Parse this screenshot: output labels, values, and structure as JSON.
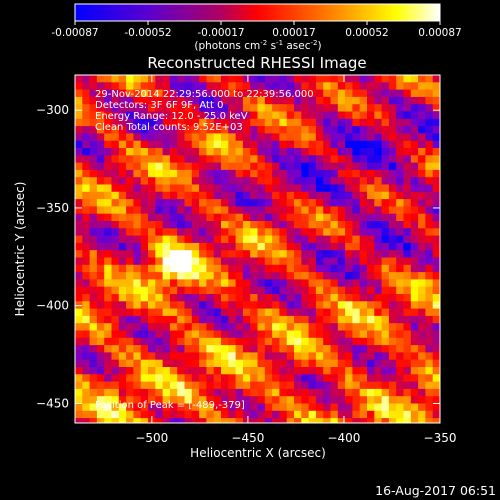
{
  "colorbar": {
    "ticks": [
      "-0.00087",
      "-0.00052",
      "-0.00017",
      "0.00017",
      "0.00052",
      "0.00087"
    ],
    "unit_main": "(photons cm",
    "unit_exp1": "-2",
    "unit_mid": " s",
    "unit_exp2": "-1",
    "unit_tail": " asec",
    "unit_exp3": "-2",
    "unit_close": ")"
  },
  "footer": {
    "timestamp": "16-Aug-2017 06:51"
  },
  "chart_data": {
    "type": "heatmap",
    "title": "Reconstructed RHESSI Image",
    "xlabel": "Heliocentric X (arcsec)",
    "ylabel": "Heliocentric Y (arcsec)",
    "xlim": [
      -540,
      -350
    ],
    "ylim": [
      -460,
      -282
    ],
    "x_ticks": [
      -500,
      -450,
      -400,
      -350
    ],
    "x_tick_labels": [
      "−500",
      "−450",
      "−400",
      "−350"
    ],
    "y_ticks": [
      -300,
      -350,
      -400,
      -450
    ],
    "y_tick_labels": [
      "−300",
      "−350",
      "−400",
      "−450"
    ],
    "colorbar_range": [
      -0.00087,
      0.00087
    ],
    "colormap_stops": [
      "#0000ff",
      "#7a00c8",
      "#ff0000",
      "#ff8000",
      "#ffff00",
      "#ffffff"
    ],
    "grid": false,
    "annotations": [
      "29-Nov-2014 22:29:56.000 to 22:39:56.000",
      "Detectors: 3F 6F 9F, Att 0",
      "Energy Range: 12.0 - 25.0 keV",
      "Clean     Total counts: 9.52E+03"
    ],
    "peak_label": "Position of Peak = [-489,-379]",
    "peak": [
      -489,
      -379
    ]
  }
}
